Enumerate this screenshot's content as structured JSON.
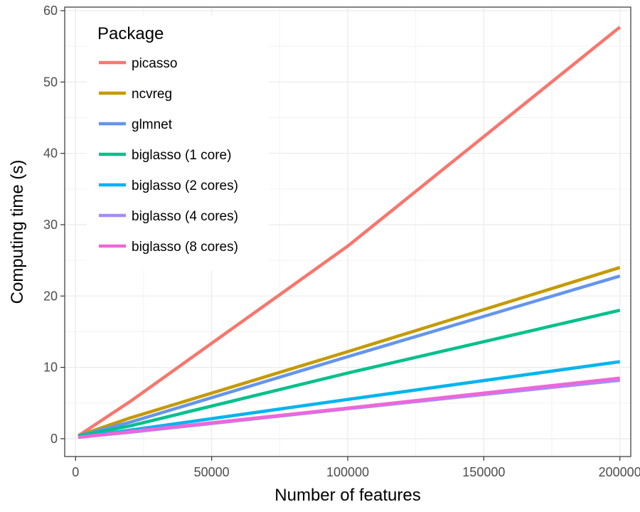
{
  "chart_data": {
    "type": "line",
    "title": "",
    "xlabel": "Number of features",
    "ylabel": "Computing time (s)",
    "xlim": [
      -4000,
      204000
    ],
    "ylim": [
      -2.5,
      60.5
    ],
    "xticks": [
      0,
      50000,
      100000,
      150000,
      200000
    ],
    "xtick_labels": [
      "0",
      "50000",
      "100000",
      "150000",
      "200000"
    ],
    "yticks": [
      0,
      10,
      20,
      30,
      40,
      50,
      60
    ],
    "ytick_labels": [
      "0",
      "10",
      "20",
      "30",
      "40",
      "50",
      "60"
    ],
    "grid": true,
    "legend": {
      "title": "Package",
      "position": "top-left"
    },
    "x": [
      1000,
      20000,
      100000,
      200000
    ],
    "series": [
      {
        "name": "picasso",
        "color": "#F8766D",
        "values": [
          0.4,
          5.2,
          27.0,
          57.7
        ]
      },
      {
        "name": "ncvreg",
        "color": "#C49A00",
        "values": [
          0.4,
          2.9,
          12.2,
          24.0
        ]
      },
      {
        "name": "glmnet",
        "color": "#6495ED",
        "values": [
          0.4,
          2.3,
          11.5,
          22.8
        ]
      },
      {
        "name": "biglasso (1 core)",
        "color": "#00C08B",
        "values": [
          0.4,
          1.8,
          9.2,
          18.0
        ]
      },
      {
        "name": "biglasso (2 cores)",
        "color": "#00B4EF",
        "values": [
          0.2,
          1.2,
          5.5,
          10.8
        ]
      },
      {
        "name": "biglasso (4 cores)",
        "color": "#A58AFF",
        "values": [
          0.2,
          0.9,
          4.2,
          8.2
        ]
      },
      {
        "name": "biglasso (8 cores)",
        "color": "#F066D8",
        "values": [
          0.2,
          1.0,
          4.3,
          8.5
        ]
      }
    ]
  }
}
